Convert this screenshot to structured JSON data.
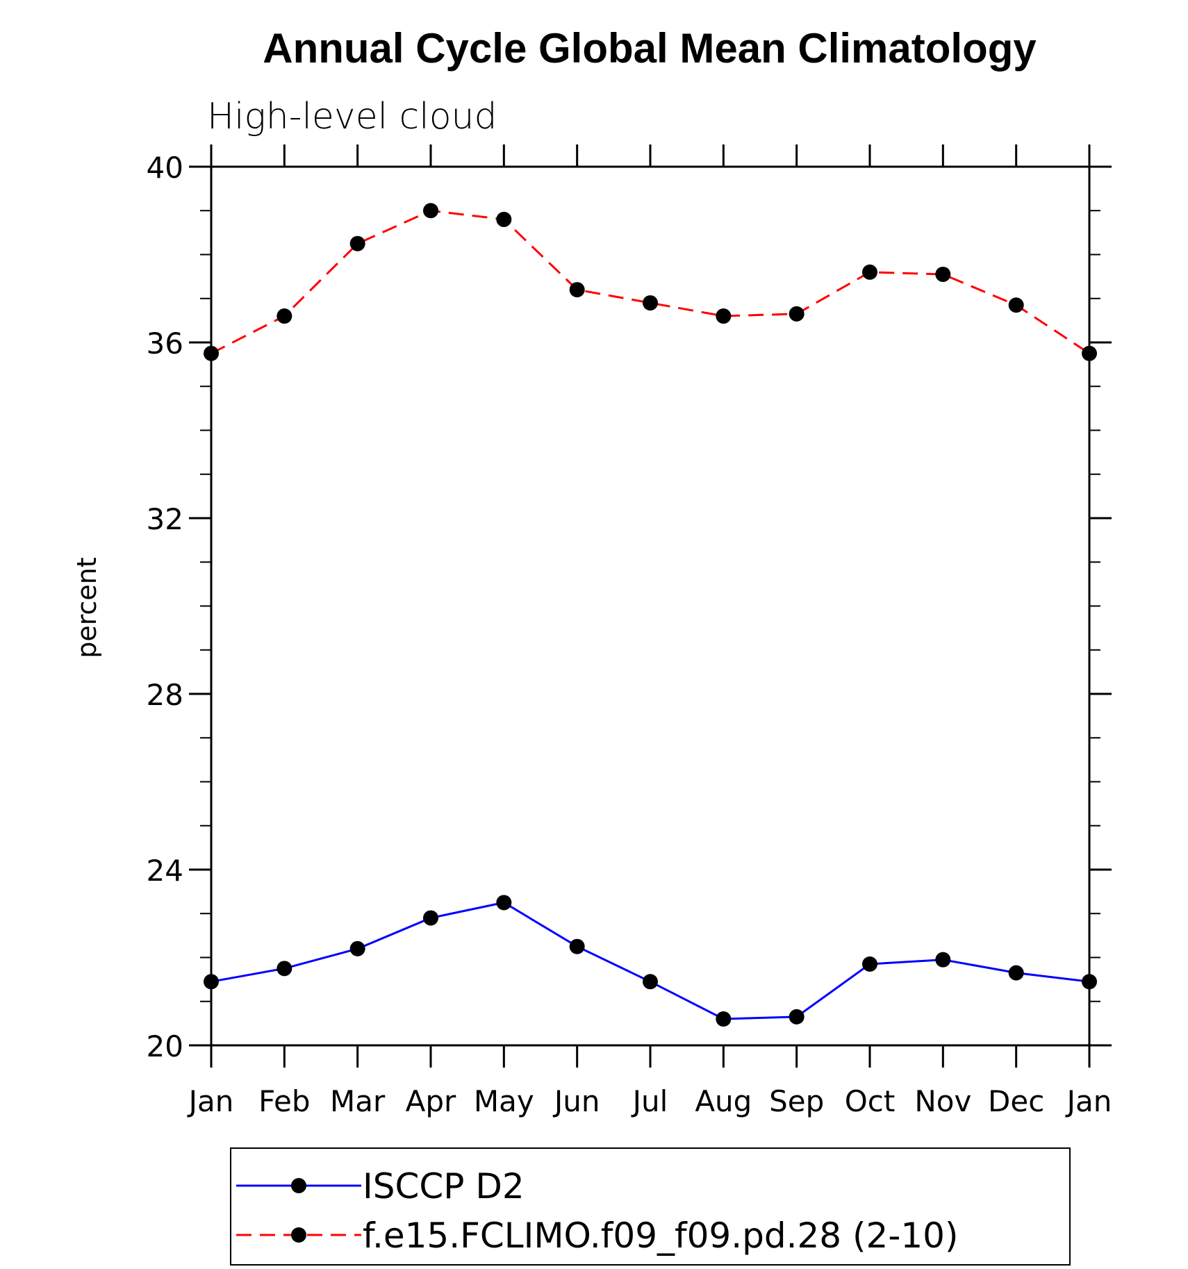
{
  "chart_data": {
    "type": "line",
    "title": "Annual Cycle Global Mean Climatology",
    "subtitle": "High-level cloud",
    "xlabel": "",
    "ylabel": "percent",
    "categories": [
      "Jan",
      "Feb",
      "Mar",
      "Apr",
      "May",
      "Jun",
      "Jul",
      "Aug",
      "Sep",
      "Oct",
      "Nov",
      "Dec",
      "Jan"
    ],
    "ylim": [
      20,
      40
    ],
    "yticks": [
      20,
      24,
      28,
      32,
      36,
      40
    ],
    "series": [
      {
        "name": "ISCCP D2",
        "color": "#0000ff",
        "dash": "solid",
        "values": [
          21.45,
          21.75,
          22.2,
          22.9,
          23.25,
          22.25,
          21.45,
          20.6,
          20.65,
          21.85,
          21.95,
          21.65,
          21.45
        ]
      },
      {
        "name": "f.e15.FCLIMO.f09_f09.pd.28 (2-10)",
        "color": "#ff0000",
        "dash": "dashed",
        "values": [
          35.75,
          36.6,
          38.25,
          39.0,
          38.8,
          37.2,
          36.9,
          36.6,
          36.65,
          37.6,
          37.55,
          36.85,
          35.75
        ]
      }
    ]
  }
}
